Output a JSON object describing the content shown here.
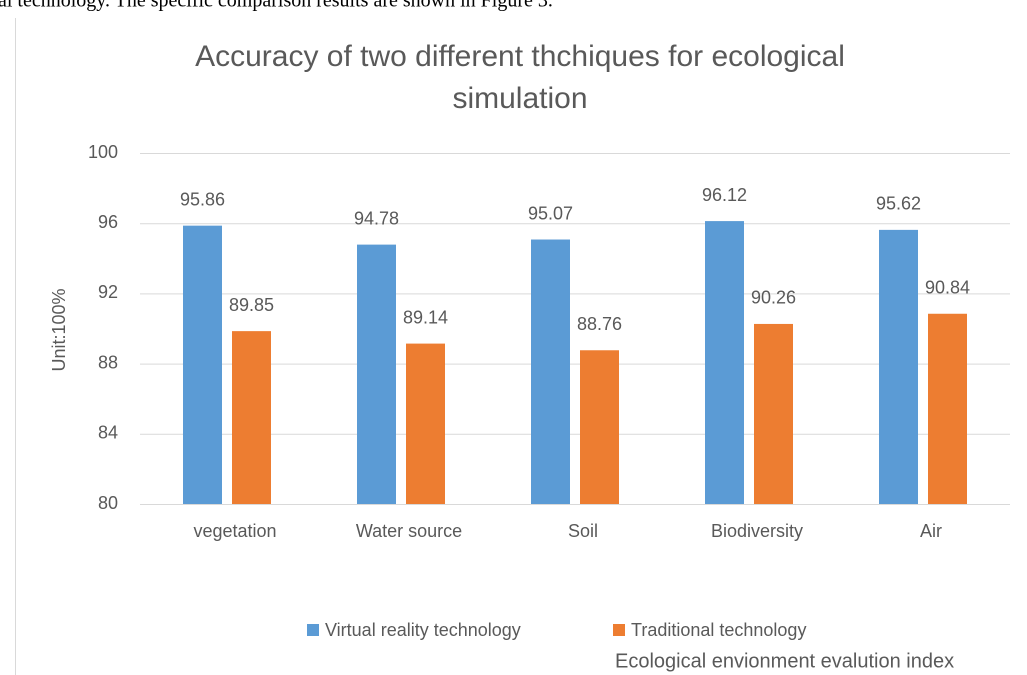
{
  "context_text": "al technology. The specific comparison results are shown in Figure 3.",
  "chart_data": {
    "type": "bar",
    "title": "Accuracy of two different thchiques for ecological simulation",
    "title_lines": [
      "Accuracy of two different thchiques for ecological",
      "simulation"
    ],
    "y_label": "Unit:100%",
    "x_label": "Ecological envionment evalution index",
    "categories": [
      "vegetation",
      "Water source",
      "Soil",
      "Biodiversity",
      "Air"
    ],
    "series": [
      {
        "name": "Virtual reality technology",
        "color": "#5b9bd5",
        "values": [
          95.86,
          94.78,
          95.07,
          96.12,
          95.62
        ]
      },
      {
        "name": "Traditional technology",
        "color": "#ed7d31",
        "values": [
          89.85,
          89.14,
          88.76,
          90.26,
          90.84
        ]
      }
    ],
    "ylim": [
      80,
      100
    ],
    "yticks": [
      80,
      84,
      88,
      92,
      96,
      100
    ],
    "grid": true,
    "legend": "bottom"
  }
}
